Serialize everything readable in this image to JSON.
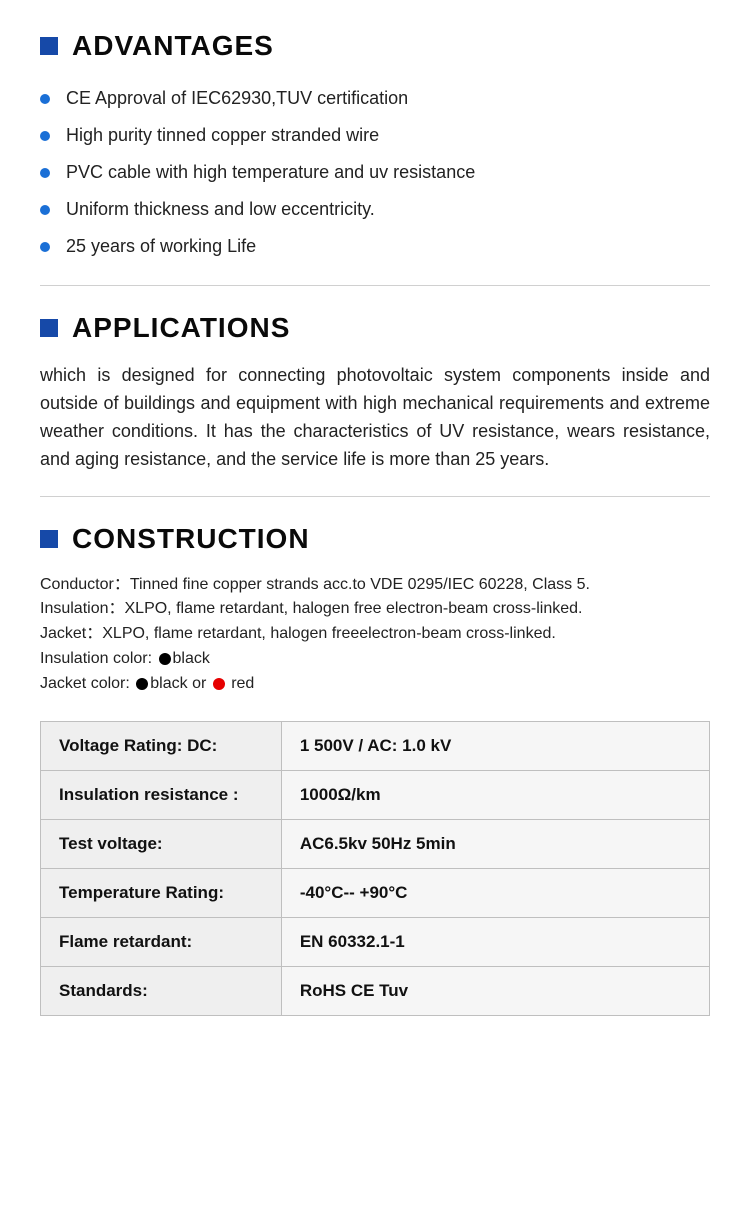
{
  "colors": {
    "accent": "#1649a8",
    "bullet": "#1a6fd6",
    "text": "#1a1a1a",
    "divider": "#d0d0d0",
    "table_border": "#bfbfbf",
    "table_bg_label": "#efefef",
    "table_bg_value": "#f6f6f6",
    "dot_black": "#000000",
    "dot_red": "#e60000"
  },
  "advantages": {
    "title": "ADVANTAGES",
    "items": [
      "CE Approval of IEC62930,TUV certification",
      "High purity tinned copper stranded wire",
      "PVC cable with high temperature and uv resistance",
      "Uniform thickness and low eccentricity.",
      "25 years of working Life"
    ]
  },
  "applications": {
    "title": "APPLICATIONS",
    "text": "which is designed for connecting photovoltaic system components inside and outside of buildings and equipment with high mechanical requirements and extreme weather conditions. It has the characteristics of UV resistance, wears resistance, and aging resistance, and the service life is more than 25 years."
  },
  "construction": {
    "title": "CONSTRUCTION",
    "lines": {
      "conductor": "Conductor：Tinned fine copper strands acc.to VDE 0295/IEC 60228, Class 5.",
      "insulation": "Insulation：XLPO, flame retardant, halogen free electron-beam cross-linked.",
      "jacket": "Jacket：XLPO, flame retardant, halogen freeelectron-beam cross-linked.",
      "insulation_color_label": "Insulation color:",
      "insulation_color_text": "black",
      "jacket_color_label": "Jacket color:",
      "jacket_color_black": "black or",
      "jacket_color_red": "red"
    },
    "table": {
      "rows": [
        {
          "label": "Voltage Rating: DC:",
          "value": "1 500V / AC: 1.0 kV"
        },
        {
          "label": "Insulation resistance :",
          "value": "1000Ω/km"
        },
        {
          "label": "Test voltage:",
          "value": "AC6.5kv 50Hz 5min"
        },
        {
          "label": "Temperature Rating:",
          "value": "-40°C-- +90°C"
        },
        {
          "label": "Flame retardant:",
          "value": "EN 60332.1-1"
        },
        {
          "label": "Standards:",
          "value": "RoHS CE Tuv"
        }
      ]
    }
  }
}
